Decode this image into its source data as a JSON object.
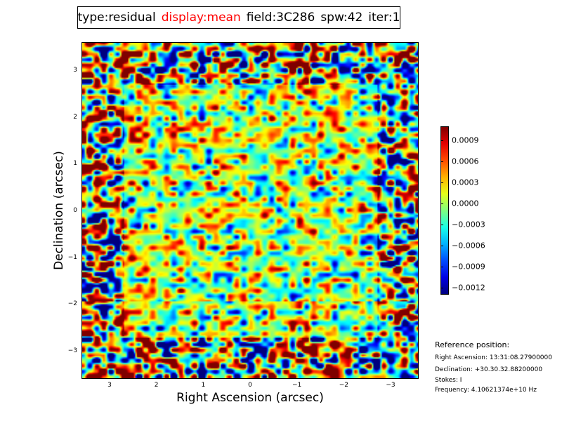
{
  "title": {
    "type": "type:residual",
    "display": "display:mean",
    "field": "field:3C286",
    "spw": "spw:42",
    "iter": "iter:1",
    "display_color": "#ff0000"
  },
  "chart_data": {
    "type": "heatmap",
    "title": "type:residual display:mean field:3C286 spw:42 iter:1",
    "xlabel": "Right Ascension (arcsec)",
    "ylabel": "Declination (arcsec)",
    "xlim": [
      3.6,
      -3.6
    ],
    "ylim": [
      -3.6,
      3.6
    ],
    "xticks": [
      3,
      2,
      1,
      0,
      -1,
      -2,
      -3
    ],
    "xtick_labels": [
      "3",
      "2",
      "1",
      "0",
      "−1",
      "−2",
      "−3"
    ],
    "yticks": [
      3,
      2,
      1,
      0,
      -1,
      -2,
      -3
    ],
    "ytick_labels": [
      "3",
      "2",
      "1",
      "0",
      "−1",
      "−2",
      "−3"
    ],
    "colormap": "jet",
    "colorbar": {
      "range": [
        -0.0013,
        0.0011
      ],
      "ticks": [
        0.0009,
        0.0006,
        0.0003,
        0.0,
        -0.0003,
        -0.0006,
        -0.0009,
        -0.0012
      ],
      "tick_labels": [
        "0.0009",
        "0.0006",
        "0.0003",
        "0.0000",
        "−0.0003",
        "−0.0006",
        "−0.0009",
        "−0.0012"
      ]
    }
  },
  "reference": {
    "heading": "Reference position:",
    "ra": "Right Ascension: 13:31:08.27900000",
    "dec": "Declination: +30.30.32.88200000",
    "stokes": "Stokes: I",
    "freq": "Frequency: 4.10621374e+10 Hz"
  }
}
